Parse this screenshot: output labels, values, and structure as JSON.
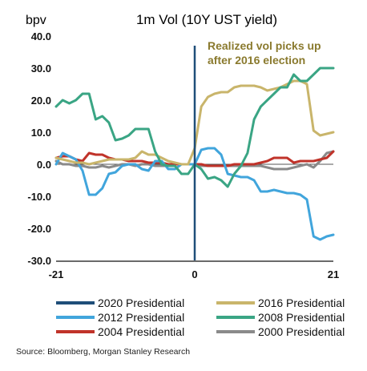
{
  "chart_data": {
    "type": "line",
    "title": "1m Vol (10Y UST yield)",
    "ylabel": "bpv",
    "xlabel": "",
    "x_ticks": [
      -21,
      0,
      21
    ],
    "y_ticks": [
      "40.0",
      "30.0",
      "20.0",
      "10.0",
      "0.0",
      "-10.0",
      "-20.0",
      "-30.0"
    ],
    "xlim": [
      -21,
      21
    ],
    "ylim": [
      -30,
      40
    ],
    "grid": false,
    "legend_position": "bottom",
    "annotation": "Realized vol picks up after 2016 election",
    "annotation_lines": [
      "Realized vol picks up",
      "after 2016 election"
    ],
    "series": [
      {
        "name": "2020 Presidential",
        "color": "#1f4e79",
        "kind": "vline",
        "x": 0
      },
      {
        "name": "2016 Presidential",
        "color": "#c9b56b",
        "x": [
          -21,
          -20,
          -19,
          -18,
          -17,
          -16,
          -15,
          -14,
          -13,
          -12,
          -11,
          -10,
          -9,
          -8,
          -7,
          -6,
          -5,
          -4,
          -3,
          -2,
          -1,
          0,
          1,
          2,
          3,
          4,
          5,
          6,
          7,
          8,
          9,
          10,
          11,
          12,
          13,
          14,
          15,
          16,
          17,
          18,
          19,
          20,
          21
        ],
        "values": [
          2,
          1.5,
          1,
          0.5,
          0.5,
          0,
          0.5,
          1,
          1.5,
          1.5,
          1.5,
          1.5,
          2,
          4,
          3,
          3,
          2,
          1,
          0.5,
          0,
          0,
          5,
          18,
          21,
          22,
          22.5,
          22.5,
          24,
          24.5,
          24.5,
          24.5,
          24,
          23,
          23.5,
          24,
          25,
          26,
          26,
          25,
          10.5,
          9,
          9.5,
          10
        ]
      },
      {
        "name": "2012 Presidential",
        "color": "#41a5dc",
        "x": [
          -21,
          -20,
          -19,
          -18,
          -17,
          -16,
          -15,
          -14,
          -13,
          -12,
          -11,
          -10,
          -9,
          -8,
          -7,
          -6,
          -5,
          -4,
          -3,
          -2,
          -1,
          0,
          1,
          2,
          3,
          4,
          5,
          6,
          7,
          8,
          9,
          10,
          11,
          12,
          13,
          14,
          15,
          16,
          17,
          18,
          19,
          20,
          21
        ],
        "values": [
          0,
          3.5,
          2.5,
          1.5,
          -2,
          -9.5,
          -9.5,
          -7.5,
          -3,
          -2.5,
          -0.5,
          0,
          0,
          -1.5,
          -2,
          1,
          1,
          -1.5,
          -1.5,
          0,
          0,
          0,
          4.5,
          5,
          5,
          3,
          -3,
          -3.5,
          -4,
          -4,
          -5,
          -8.5,
          -8.5,
          -8,
          -8.5,
          -9,
          -9,
          -9.5,
          -11,
          -22.5,
          -23.5,
          -22.5,
          -22
        ]
      },
      {
        "name": "2004 Presidential",
        "color": "#c0332a",
        "x": [
          -21,
          -20,
          -19,
          -18,
          -17,
          -16,
          -15,
          -14,
          -13,
          -12,
          -11,
          -10,
          -9,
          -8,
          -7,
          -6,
          -5,
          -4,
          -3,
          -2,
          -1,
          0,
          1,
          2,
          3,
          4,
          5,
          6,
          7,
          8,
          9,
          10,
          11,
          12,
          13,
          14,
          15,
          16,
          17,
          18,
          19,
          20,
          21
        ],
        "values": [
          2,
          2.5,
          2.5,
          1.5,
          1,
          3.5,
          3,
          3,
          2,
          1.5,
          1.5,
          1,
          1,
          1,
          0.5,
          0.5,
          0.5,
          0,
          0,
          0,
          0,
          0,
          0,
          -0.5,
          -0.5,
          -0.5,
          -0.5,
          0,
          0,
          0,
          0,
          0.5,
          1,
          2,
          2,
          2,
          0.5,
          1,
          1,
          1,
          1.5,
          2,
          4
        ]
      },
      {
        "name": "2008 Presidential",
        "color": "#3aa584",
        "x": [
          -21,
          -20,
          -19,
          -18,
          -17,
          -16,
          -15,
          -14,
          -13,
          -12,
          -11,
          -10,
          -9,
          -8,
          -7,
          -6,
          -5,
          -4,
          -3,
          -2,
          -1,
          0,
          1,
          2,
          3,
          4,
          5,
          6,
          7,
          8,
          9,
          10,
          11,
          12,
          13,
          14,
          15,
          16,
          17,
          18,
          19,
          20,
          21
        ],
        "values": [
          18,
          20,
          19,
          20,
          22,
          22,
          14,
          15,
          13,
          7.5,
          8,
          9,
          11,
          11,
          11,
          4,
          0,
          -0.5,
          -0.5,
          -3,
          -3,
          0,
          -1.5,
          -4.5,
          -4,
          -5,
          -7,
          -3,
          -0.5,
          3.5,
          14,
          18,
          20,
          22,
          24,
          24,
          28,
          26,
          26,
          28,
          30,
          30,
          30
        ]
      },
      {
        "name": "2000 Presidential",
        "color": "#8a8a8a",
        "x": [
          -21,
          -20,
          -19,
          -18,
          -17,
          -16,
          -15,
          -14,
          -13,
          -12,
          -11,
          -10,
          -9,
          -8,
          -7,
          -6,
          -5,
          -4,
          -3,
          -2,
          -1,
          0,
          1,
          2,
          3,
          4,
          5,
          6,
          7,
          8,
          9,
          10,
          11,
          12,
          13,
          14,
          15,
          16,
          17,
          18,
          19,
          20,
          21
        ],
        "values": [
          1,
          0,
          0,
          -0.5,
          -0.5,
          -1,
          -1,
          -0.5,
          -1,
          -0.5,
          0,
          0,
          -0.5,
          0,
          0,
          -0.5,
          -0.5,
          -0.5,
          0,
          0,
          0,
          0,
          -0.5,
          -0.5,
          -0.5,
          -0.5,
          -0.5,
          -0.5,
          -0.5,
          -0.5,
          -0.5,
          -0.5,
          -1,
          -1.5,
          -1.5,
          -1.5,
          -1,
          -0.5,
          0,
          -1,
          1,
          3.5,
          4
        ]
      }
    ]
  },
  "source_text": "Source: Bloomberg, Morgan Stanley Research"
}
